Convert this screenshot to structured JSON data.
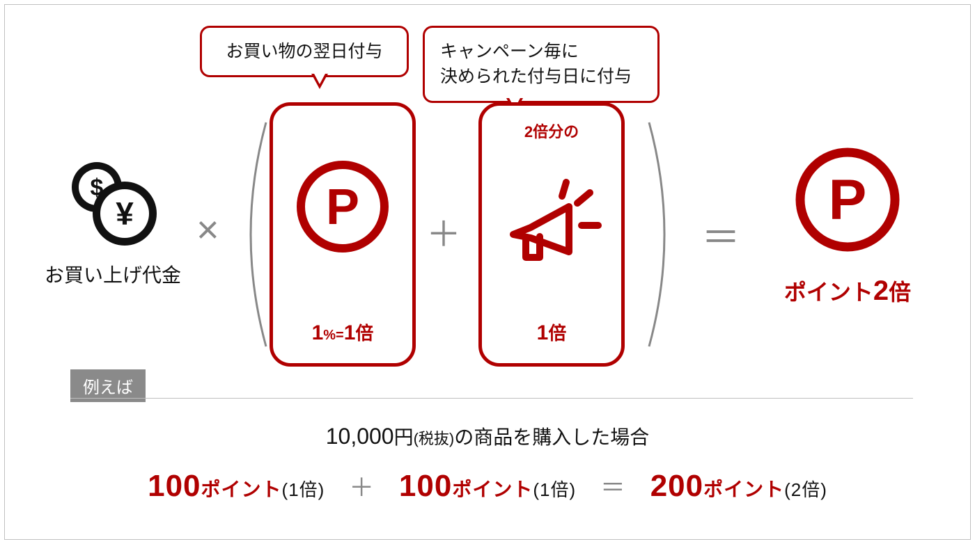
{
  "colors": {
    "accent": "#b00000",
    "text": "#111111",
    "muted": "#888888",
    "border": "#bfbfbf",
    "tag_bg": "#8a8a8a",
    "white": "#ffffff"
  },
  "bubbles": {
    "b1": "お買い物の翌日付与",
    "b2": "キャンペーン毎に\n決められた付与日に付与"
  },
  "money": {
    "label": "お買い上げ代金"
  },
  "operators": {
    "mult": "×",
    "plus": "＋",
    "eq": "＝"
  },
  "card1": {
    "big1": "1",
    "pct": "%=",
    "big2": "1",
    "bai": "倍"
  },
  "card2": {
    "top": "2倍分の",
    "big": "1",
    "bai": "倍"
  },
  "result": {
    "prefix": "ポイント",
    "num": "2",
    "suffix": "倍"
  },
  "example": {
    "tag": "例えば",
    "heading_amt": "10,000",
    "heading_yen": "円",
    "heading_paren": "(税抜)",
    "heading_tail": "の商品を購入した場合",
    "t1_num": "100",
    "t1_unit": "ポイント",
    "t1_mult": "(1倍)",
    "t2_num": "100",
    "t2_unit": "ポイント",
    "t2_mult": "(1倍)",
    "t3_num": "200",
    "t3_unit": "ポイント",
    "t3_mult": "(2倍)"
  }
}
